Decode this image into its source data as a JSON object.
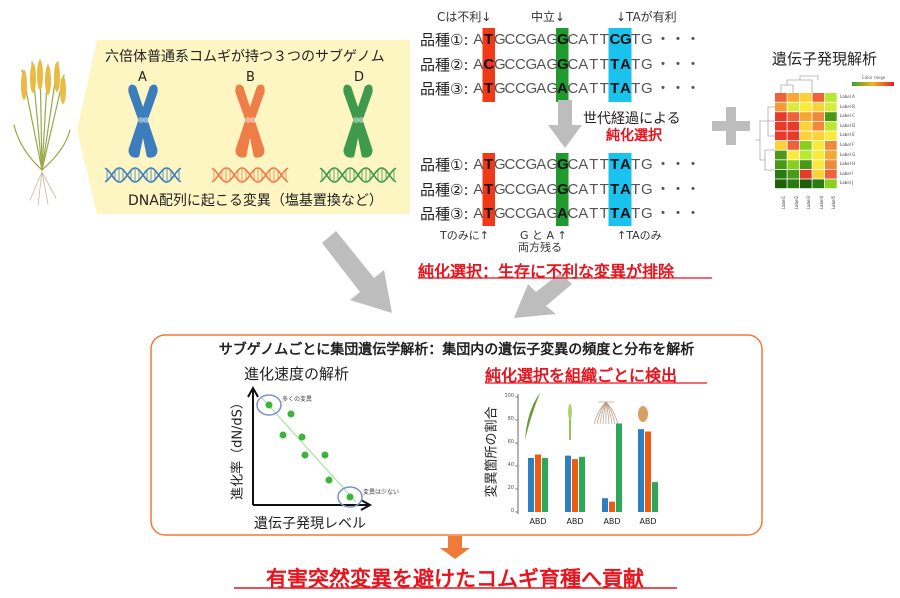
{
  "left_panel": {
    "title": "六倍体普通系コムギが持つ３つのサブゲノム",
    "subgenomes": [
      {
        "label": "A",
        "color": "#3e7dbd"
      },
      {
        "label": "B",
        "color": "#ee7d47"
      },
      {
        "label": "D",
        "color": "#3f9a4e"
      }
    ],
    "caption": "DNA配列に起こる変異（塩基置換など）"
  },
  "sequences": {
    "top_notes": [
      "Cは不利↓",
      "中立↓",
      "↓TAが有利"
    ],
    "before": [
      {
        "label": "品種①:",
        "seq": "ATGCCGAGGCATTCGTG"
      },
      {
        "label": "品種②:",
        "seq": "ACGCCGAGGCATTTATG"
      },
      {
        "label": "品種③:",
        "seq": "ATGCCGAGACATTTATG"
      }
    ],
    "after": [
      {
        "label": "品種①:",
        "seq": "ATGCCGAGGCATTTATG"
      },
      {
        "label": "品種②:",
        "seq": "ATGCCGAGGCATTTATG"
      },
      {
        "label": "品種③:",
        "seq": "ATGCCGAGACATTTATG"
      }
    ],
    "trailing": "・・・",
    "bottom_notes": [
      "Tのみに↑",
      "G と A ↑",
      "両方残る",
      "↑TAのみ"
    ],
    "highlight_colors": {
      "red": "#f03a17",
      "green": "#1f9a2e",
      "blue": "#19c3ee"
    },
    "generation_text": "世代経過による",
    "purifying": "純化選択",
    "conclusion": "純化選択：生存に不利な変異が排除"
  },
  "heatmap": {
    "title": "遺伝子発現解析",
    "legend": "Color range",
    "rows": [
      "Label A",
      "Label B",
      "Label C",
      "Label D",
      "Label E",
      "Label F",
      "Label G",
      "Label H",
      "Label I",
      "Label J"
    ],
    "cols": [
      "Label1",
      "Label2",
      "Label3",
      "Label4",
      "Label5"
    ],
    "colors": [
      [
        "#f0603a",
        "#f8a830",
        "#fcd23a",
        "#f0603a",
        "#b8e830"
      ],
      [
        "#f39a3a",
        "#d8ec3a",
        "#fde93a",
        "#fcd23a",
        "#d8ec3a"
      ],
      [
        "#e83a2a",
        "#f0603a",
        "#f8a830",
        "#f08a3a",
        "#4a9a18"
      ],
      [
        "#e83a2a",
        "#e83a2a",
        "#fcd23a",
        "#f08a3a",
        "#b8e830"
      ],
      [
        "#e83a2a",
        "#e83a2a",
        "#fcd23a",
        "#fcd23a",
        "#fde93a"
      ],
      [
        "#fcd23a",
        "#f0603a",
        "#88d020",
        "#fde93a",
        "#f08a3a"
      ],
      [
        "#4a9a18",
        "#fde93a",
        "#b8e830",
        "#fde93a",
        "#f8a830"
      ],
      [
        "#4a9a18",
        "#88d020",
        "#4a9a18",
        "#fde93a",
        "#f08a3a"
      ],
      [
        "#2a7a10",
        "#4a9a18",
        "#e83a2a",
        "#fcd23a",
        "#f0603a"
      ],
      [
        "#1d6008",
        "#2a7a10",
        "#1d6008",
        "#2a7a10",
        "#88d020"
      ]
    ]
  },
  "analysis": {
    "header": "サブゲノムごとに集団遺伝学解析：集団内の遺伝子変異の頻度と分布を解析",
    "left_title": "進化速度の解析",
    "scatter": {
      "ylabel": "進化率（dN/dS）",
      "xlabel": "遺伝子発現レベル",
      "note_high": "多くの変異",
      "note_low": "変異は少ない"
    },
    "right_title": "純化選択を組織ごとに検出"
  },
  "chart_data": {
    "type": "bar",
    "ylabel": "変異箇所の割合",
    "ylim": [
      0,
      100
    ],
    "yticks": [
      0,
      20,
      40,
      60,
      80,
      100
    ],
    "categories": [
      "ABD",
      "ABD",
      "ABD",
      "ABD"
    ],
    "series": [
      {
        "values": [
          47,
          49,
          12,
          72
        ],
        "color": "#2e7fc0"
      },
      {
        "values": [
          50,
          46,
          9,
          70
        ],
        "color": "#ee5a12"
      },
      {
        "values": [
          47,
          48,
          77,
          26
        ],
        "color": "#2da858"
      }
    ]
  },
  "footer": "有害突然変異を避けたコムギ育種へ貢献",
  "colors": {
    "accent_orange": "#f07a3a",
    "gray_arrow": "#bdbdbd",
    "panel_yellow": "#fdf6c3"
  }
}
